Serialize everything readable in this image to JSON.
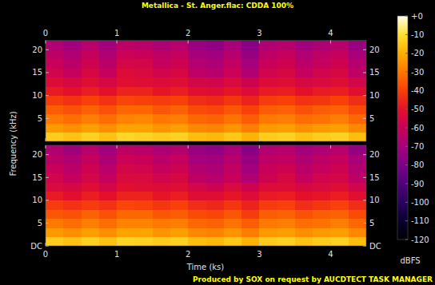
{
  "chart_data": {
    "type": "spectrogram",
    "title": "Metallica - St. Anger.flac: CDDA 100%",
    "x_label": "Time (ks)",
    "y_label": "Frequency (kHz)",
    "footer": "Produced by SOX on request by AUCDTECT TASK MANAGER",
    "xlim": [
      0,
      4.5
    ],
    "xticks": [
      0,
      1,
      2,
      3,
      4
    ],
    "ylim": [
      0,
      22.05
    ],
    "time_bins": [
      0,
      0.25,
      0.5,
      0.75,
      1,
      1.25,
      1.5,
      1.75,
      2,
      2.25,
      2.5,
      2.75,
      3,
      3.25,
      3.5,
      3.75,
      4,
      4.25,
      4.5
    ],
    "freq_bins": [
      0,
      2,
      4,
      6,
      8,
      10,
      12,
      14,
      16,
      18,
      20,
      22.05
    ],
    "channels": [
      {
        "yticks": [
          5,
          10,
          15,
          20
        ],
        "cells": [
          [
            -14,
            -24,
            -30,
            -35,
            -41,
            -48,
            -53,
            -57,
            -60,
            -63,
            -67
          ],
          [
            -16,
            -26,
            -32,
            -37,
            -43,
            -50,
            -55,
            -61,
            -64,
            -67,
            -71
          ],
          [
            -13,
            -23,
            -29,
            -34,
            -40,
            -47,
            -52,
            -55,
            -58,
            -61,
            -65
          ],
          [
            -16,
            -26,
            -32,
            -37,
            -43,
            -50,
            -55,
            -61,
            -64,
            -67,
            -71
          ],
          [
            -12,
            -22,
            -28,
            -33,
            -39,
            -46,
            -51,
            -53,
            -56,
            -59,
            -63
          ],
          [
            -13,
            -22,
            -27,
            -33,
            -40,
            -46,
            -52,
            -54,
            -56,
            -60,
            -64
          ],
          [
            -14,
            -25,
            -30,
            -36,
            -41,
            -49,
            -53,
            -57,
            -61,
            -63,
            -68
          ],
          [
            -13,
            -23,
            -29,
            -34,
            -40,
            -47,
            -52,
            -55,
            -58,
            -61,
            -65
          ],
          [
            -17,
            -27,
            -33,
            -38,
            -44,
            -51,
            -56,
            -63,
            -66,
            -69,
            -73
          ],
          [
            -18,
            -28,
            -34,
            -39,
            -45,
            -52,
            -57,
            -65,
            -68,
            -71,
            -75
          ],
          [
            -15,
            -25,
            -31,
            -36,
            -42,
            -49,
            -54,
            -59,
            -62,
            -65,
            -69
          ],
          [
            -19,
            -29,
            -35,
            -40,
            -46,
            -53,
            -58,
            -67,
            -70,
            -73,
            -77
          ],
          [
            -14,
            -24,
            -30,
            -35,
            -41,
            -48,
            -53,
            -57,
            -60,
            -63,
            -67
          ],
          [
            -13,
            -23,
            -29,
            -34,
            -40,
            -47,
            -52,
            -55,
            -58,
            -61,
            -65
          ],
          [
            -16,
            -26,
            -32,
            -37,
            -43,
            -50,
            -55,
            -61,
            -64,
            -67,
            -71
          ],
          [
            -14,
            -24,
            -31,
            -35,
            -42,
            -48,
            -54,
            -57,
            -61,
            -63,
            -68
          ],
          [
            -13,
            -23,
            -29,
            -34,
            -40,
            -47,
            -52,
            -55,
            -58,
            -61,
            -65
          ],
          [
            -17,
            -27,
            -33,
            -38,
            -44,
            -51,
            -56,
            -63,
            -66,
            -69,
            -73
          ]
        ]
      },
      {
        "yticks": [
          {
            "value": 0,
            "label": "DC"
          },
          5,
          10,
          15,
          20
        ],
        "cells": [
          [
            -14,
            -24,
            -30,
            -36,
            -41,
            -48,
            -54,
            -57,
            -60,
            -64,
            -67
          ],
          [
            -16,
            -26,
            -32,
            -37,
            -43,
            -51,
            -55,
            -61,
            -64,
            -67,
            -72
          ],
          [
            -13,
            -23,
            -29,
            -34,
            -41,
            -47,
            -52,
            -56,
            -58,
            -61,
            -65
          ],
          [
            -16,
            -26,
            -32,
            -37,
            -43,
            -50,
            -56,
            -61,
            -64,
            -68,
            -71
          ],
          [
            -12,
            -22,
            -28,
            -33,
            -39,
            -46,
            -51,
            -54,
            -56,
            -59,
            -63
          ],
          [
            -13,
            -22,
            -28,
            -33,
            -40,
            -46,
            -52,
            -54,
            -57,
            -60,
            -64
          ],
          [
            -14,
            -25,
            -30,
            -36,
            -42,
            -49,
            -53,
            -57,
            -61,
            -64,
            -68
          ],
          [
            -13,
            -23,
            -29,
            -35,
            -40,
            -47,
            -52,
            -55,
            -58,
            -61,
            -66
          ],
          [
            -17,
            -27,
            -33,
            -38,
            -44,
            -52,
            -56,
            -63,
            -66,
            -70,
            -73
          ],
          [
            -18,
            -28,
            -34,
            -39,
            -45,
            -52,
            -58,
            -65,
            -68,
            -71,
            -75
          ],
          [
            -15,
            -25,
            -31,
            -36,
            -42,
            -49,
            -54,
            -60,
            -62,
            -65,
            -69
          ],
          [
            -19,
            -29,
            -35,
            -41,
            -46,
            -53,
            -58,
            -67,
            -71,
            -73,
            -77
          ],
          [
            -14,
            -24,
            -30,
            -35,
            -41,
            -48,
            -53,
            -58,
            -60,
            -63,
            -67
          ],
          [
            -13,
            -23,
            -29,
            -34,
            -40,
            -47,
            -53,
            -55,
            -58,
            -62,
            -65
          ],
          [
            -16,
            -26,
            -32,
            -37,
            -44,
            -50,
            -55,
            -61,
            -64,
            -67,
            -71
          ],
          [
            -14,
            -24,
            -31,
            -35,
            -42,
            -49,
            -54,
            -57,
            -61,
            -63,
            -68
          ],
          [
            -13,
            -23,
            -29,
            -34,
            -40,
            -47,
            -52,
            -56,
            -58,
            -61,
            -65
          ],
          [
            -17,
            -27,
            -33,
            -38,
            -44,
            -51,
            -57,
            -63,
            -66,
            -69,
            -74
          ]
        ]
      }
    ],
    "color_bar": {
      "label": "dBFS",
      "range": [
        -120,
        0
      ],
      "ticks": [
        {
          "value": 0,
          "label": "+0"
        },
        -10,
        -20,
        -30,
        -40,
        -50,
        -60,
        -70,
        -80,
        -90,
        -100,
        -110,
        -120
      ]
    }
  }
}
